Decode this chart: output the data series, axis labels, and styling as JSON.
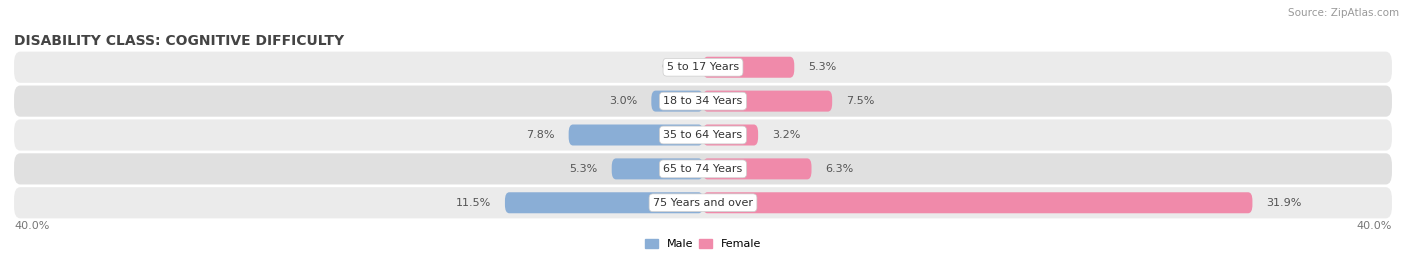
{
  "title": "DISABILITY CLASS: COGNITIVE DIFFICULTY",
  "source": "Source: ZipAtlas.com",
  "categories": [
    "5 to 17 Years",
    "18 to 34 Years",
    "35 to 64 Years",
    "65 to 74 Years",
    "75 Years and over"
  ],
  "male_values": [
    0.0,
    3.0,
    7.8,
    5.3,
    11.5
  ],
  "female_values": [
    5.3,
    7.5,
    3.2,
    6.3,
    31.9
  ],
  "male_color": "#8aaed6",
  "female_color": "#f08aaa",
  "row_bg_color_odd": "#ebebeb",
  "row_bg_color_even": "#e0e0e0",
  "axis_max": 40.0,
  "axis_label_left": "40.0%",
  "axis_label_right": "40.0%",
  "legend_male": "Male",
  "legend_female": "Female",
  "title_fontsize": 10,
  "label_fontsize": 8,
  "category_fontsize": 8,
  "source_fontsize": 7.5
}
